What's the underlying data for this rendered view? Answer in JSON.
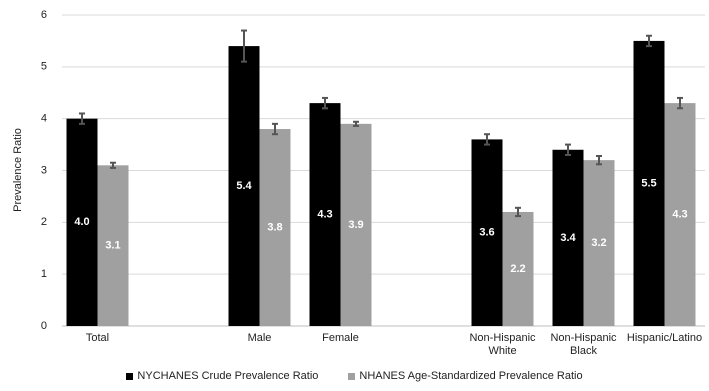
{
  "chart_data": {
    "type": "bar",
    "y_label": "Prevalence Ratio",
    "categories": [
      "Total",
      null,
      "Male",
      "Female",
      null,
      "Non-Hispanic White",
      "Non-Hispanic Black",
      "Hispanic/Latino"
    ],
    "series": [
      {
        "name": "NYCHANES Crude Prevalence Ratio",
        "color": "#000000",
        "values": [
          4.0,
          null,
          5.4,
          4.3,
          null,
          3.6,
          3.4,
          5.5
        ],
        "value_labels": [
          "4.0",
          null,
          "5.4",
          "4.3",
          null,
          "3.6",
          "3.4",
          "5.5"
        ],
        "errors": [
          0.1,
          null,
          0.3,
          0.1,
          null,
          0.1,
          0.1,
          0.1
        ]
      },
      {
        "name": "NHANES Age-Standardized Prevalence Ratio",
        "color": "#a0a0a0",
        "values": [
          3.1,
          null,
          3.8,
          3.9,
          null,
          2.2,
          3.2,
          4.3
        ],
        "value_labels": [
          "3.1",
          null,
          "3.8",
          "3.9",
          null,
          "2.2",
          "3.2",
          "4.3"
        ],
        "errors": [
          0.05,
          null,
          0.1,
          0.04,
          null,
          0.08,
          0.08,
          0.1
        ]
      }
    ],
    "ylim": [
      0,
      6
    ],
    "yticks": [
      0,
      1,
      2,
      3,
      4,
      5,
      6
    ],
    "grid": true,
    "legend": "bottom"
  }
}
